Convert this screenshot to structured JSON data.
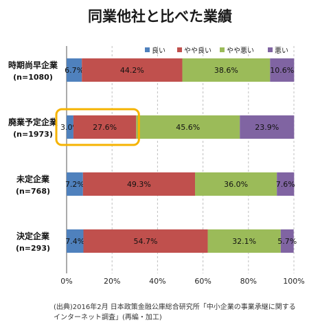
{
  "title": "同業他社と比べた業績",
  "chart_data": {
    "type": "bar",
    "stacked": true,
    "orientation": "horizontal",
    "categories": [
      {
        "name": "時期尚早企業",
        "n": "(n=1080)"
      },
      {
        "name": "廃業予定企業",
        "n": "(n=1973)"
      },
      {
        "name": "未定企業",
        "n": "(n=768)"
      },
      {
        "name": "決定企業",
        "n": "(n=293)"
      }
    ],
    "series": [
      {
        "name": "良い",
        "color": "#4f81bd",
        "values": [
          6.7,
          3.0,
          7.2,
          7.4
        ],
        "labels": [
          "6.7%",
          "3.0%",
          "7.2%",
          "7.4%"
        ]
      },
      {
        "name": "やや良い",
        "color": "#c0504d",
        "values": [
          44.2,
          27.6,
          49.3,
          54.7
        ],
        "labels": [
          "44.2%",
          "27.6%",
          "49.3%",
          "54.7%"
        ]
      },
      {
        "name": "やや悪い",
        "color": "#9bbb59",
        "values": [
          38.6,
          45.6,
          36.0,
          32.1
        ],
        "labels": [
          "38.6%",
          "45.6%",
          "36.0%",
          "32.1%"
        ]
      },
      {
        "name": "悪い",
        "color": "#8064a2",
        "values": [
          10.6,
          23.9,
          7.6,
          5.7
        ],
        "labels": [
          "10.6%",
          "23.9%",
          "7.6%",
          "5.7%"
        ]
      }
    ],
    "xlim": [
      0,
      100
    ],
    "x_ticks": [
      "0%",
      "20%",
      "40%",
      "60%",
      "80%",
      "100%"
    ],
    "legend_position": "top-right",
    "highlight": {
      "category_index": 1,
      "series_indices": [
        0,
        1
      ],
      "color": "#f5b301"
    }
  },
  "source": {
    "line1": "(出典)2016年2月 日本政策金融公庫総合研究所「中小企業の事業承継に関する",
    "line2": "インターネット調査」(再編・加工)"
  }
}
